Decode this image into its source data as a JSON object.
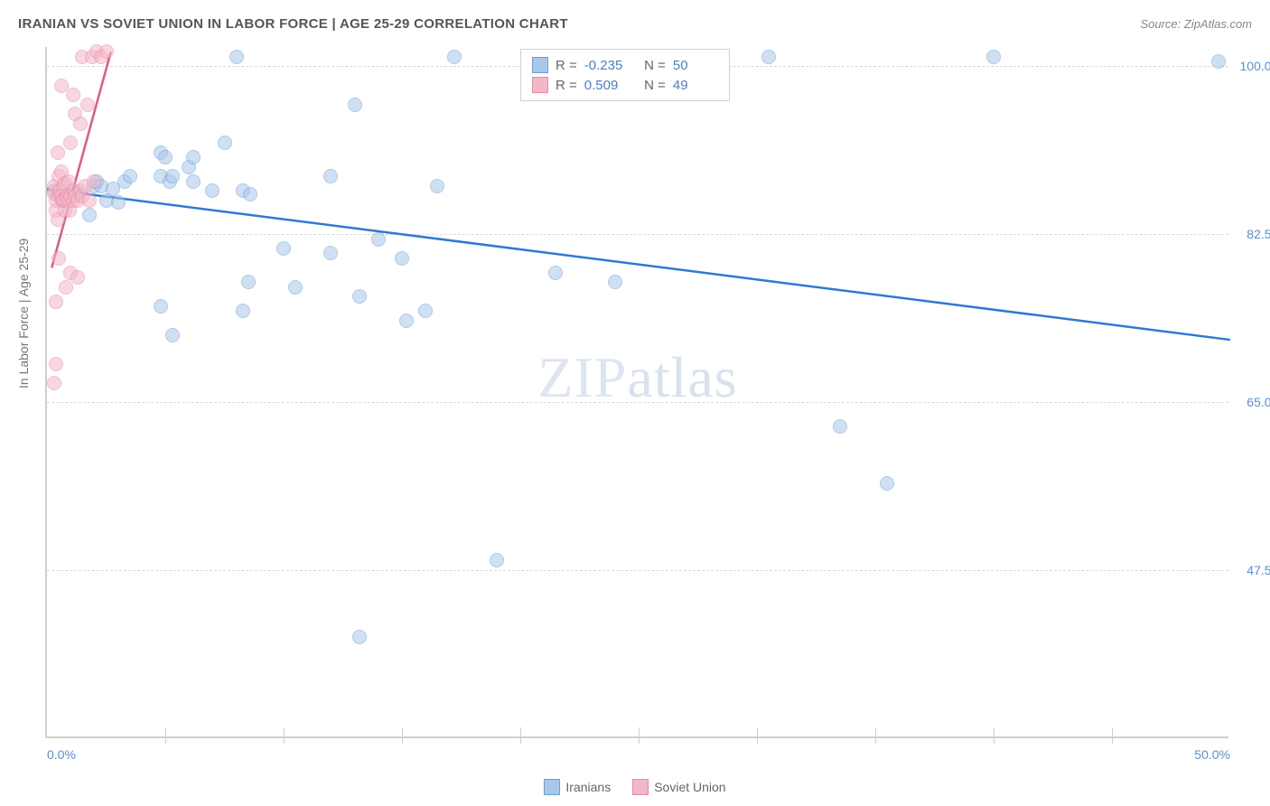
{
  "title": "IRANIAN VS SOVIET UNION IN LABOR FORCE | AGE 25-29 CORRELATION CHART",
  "source": "Source: ZipAtlas.com",
  "y_axis_label": "In Labor Force | Age 25-29",
  "watermark_a": "ZIP",
  "watermark_b": "atlas",
  "chart": {
    "type": "scatter",
    "background_color": "#ffffff",
    "grid_color": "#d8d8d8",
    "axis_color": "#cfcfcf",
    "xlim": [
      0,
      50
    ],
    "ylim": [
      30,
      102
    ],
    "x_ticks": [
      0,
      50
    ],
    "x_tick_labels": [
      "0.0%",
      "50.0%"
    ],
    "x_minor_ticks": [
      5,
      10,
      15,
      20,
      25,
      30,
      35,
      40,
      45
    ],
    "y_ticks": [
      47.5,
      65.0,
      82.5,
      100.0
    ],
    "y_tick_labels": [
      "47.5%",
      "65.0%",
      "82.5%",
      "100.0%"
    ],
    "marker_radius": 8,
    "marker_opacity": 0.55,
    "series": [
      {
        "name": "Iranians",
        "color_fill": "#a9c7eb",
        "color_stroke": "#6f9ed6",
        "trend": {
          "x1": 0,
          "y1": 87.2,
          "x2": 50,
          "y2": 71.5,
          "color": "#2f7ad1",
          "width": 2.5
        },
        "points": [
          [
            0.3,
            87.0
          ],
          [
            1.0,
            87.0
          ],
          [
            1.3,
            86.8
          ],
          [
            1.8,
            84.5
          ],
          [
            2.0,
            87.5
          ],
          [
            2.1,
            88.0
          ],
          [
            2.3,
            87.5
          ],
          [
            2.5,
            86.0
          ],
          [
            2.8,
            87.2
          ],
          [
            3.0,
            85.8
          ],
          [
            3.3,
            88.0
          ],
          [
            3.5,
            88.5
          ],
          [
            4.8,
            88.5
          ],
          [
            4.8,
            75.0
          ],
          [
            4.8,
            91.0
          ],
          [
            5.0,
            90.5
          ],
          [
            5.2,
            88.0
          ],
          [
            5.3,
            88.5
          ],
          [
            5.3,
            72.0
          ],
          [
            6.0,
            89.5
          ],
          [
            6.2,
            90.5
          ],
          [
            6.2,
            88.0
          ],
          [
            7.0,
            87.0
          ],
          [
            7.5,
            92.0
          ],
          [
            8.0,
            101.0
          ],
          [
            8.3,
            87.0
          ],
          [
            8.3,
            74.5
          ],
          [
            8.5,
            77.5
          ],
          [
            8.6,
            86.7
          ],
          [
            10.0,
            81.0
          ],
          [
            10.5,
            77.0
          ],
          [
            12.0,
            80.5
          ],
          [
            12.0,
            88.5
          ],
          [
            13.0,
            96.0
          ],
          [
            13.2,
            76.0
          ],
          [
            13.2,
            40.5
          ],
          [
            14.0,
            82.0
          ],
          [
            15.0,
            80.0
          ],
          [
            15.2,
            73.5
          ],
          [
            16.0,
            74.5
          ],
          [
            16.5,
            87.5
          ],
          [
            17.2,
            101.0
          ],
          [
            19.0,
            48.5
          ],
          [
            21.5,
            78.5
          ],
          [
            24.0,
            77.5
          ],
          [
            30.5,
            101.0
          ],
          [
            33.5,
            62.5
          ],
          [
            35.5,
            56.5
          ],
          [
            40.0,
            101.0
          ],
          [
            49.5,
            100.5
          ]
        ]
      },
      {
        "name": "Soviet Union",
        "color_fill": "#f3b8c8",
        "color_stroke": "#e889a6",
        "trend": {
          "x1": 0.2,
          "y1": 79.0,
          "x2": 2.7,
          "y2": 101.5,
          "color": "#e05a82",
          "width": 2.5
        },
        "points": [
          [
            0.3,
            86.8
          ],
          [
            0.3,
            87.5
          ],
          [
            0.4,
            86.0
          ],
          [
            0.4,
            85.0
          ],
          [
            0.45,
            84.0
          ],
          [
            0.45,
            91.0
          ],
          [
            0.5,
            86.5
          ],
          [
            0.5,
            88.5
          ],
          [
            0.5,
            80.0
          ],
          [
            0.55,
            87.0
          ],
          [
            0.6,
            86.5
          ],
          [
            0.6,
            89.0
          ],
          [
            0.6,
            98.0
          ],
          [
            0.65,
            86.0
          ],
          [
            0.7,
            86.0
          ],
          [
            0.7,
            87.5
          ],
          [
            0.75,
            85.0
          ],
          [
            0.75,
            87.8
          ],
          [
            0.8,
            86.0
          ],
          [
            0.8,
            77.0
          ],
          [
            0.85,
            86.5
          ],
          [
            0.9,
            86.0
          ],
          [
            0.9,
            88.0
          ],
          [
            0.95,
            85.0
          ],
          [
            1.0,
            86.5
          ],
          [
            1.0,
            92.0
          ],
          [
            1.0,
            78.5
          ],
          [
            1.1,
            86.0
          ],
          [
            1.1,
            97.0
          ],
          [
            1.15,
            87.0
          ],
          [
            1.2,
            86.5
          ],
          [
            1.2,
            95.0
          ],
          [
            1.3,
            86.0
          ],
          [
            1.3,
            78.0
          ],
          [
            1.4,
            87.0
          ],
          [
            1.4,
            94.0
          ],
          [
            1.5,
            86.5
          ],
          [
            1.5,
            101.0
          ],
          [
            1.6,
            87.5
          ],
          [
            1.7,
            96.0
          ],
          [
            1.8,
            86.0
          ],
          [
            1.9,
            101.0
          ],
          [
            2.0,
            88.0
          ],
          [
            2.1,
            101.5
          ],
          [
            2.3,
            101.0
          ],
          [
            2.5,
            101.5
          ],
          [
            0.3,
            67.0
          ],
          [
            0.4,
            69.0
          ],
          [
            0.4,
            75.5
          ]
        ]
      }
    ]
  },
  "stats_box": {
    "rows": [
      {
        "swatch_fill": "#a9c7eb",
        "swatch_stroke": "#6f9ed6",
        "r_value": "-0.235",
        "n_value": "50"
      },
      {
        "swatch_fill": "#f3b8c8",
        "swatch_stroke": "#e889a6",
        "r_value": "0.509",
        "n_value": "49"
      }
    ],
    "r_label": "R =",
    "n_label": "N ="
  },
  "bottom_legend": [
    {
      "swatch_fill": "#a9c7eb",
      "swatch_stroke": "#6f9ed6",
      "label": "Iranians"
    },
    {
      "swatch_fill": "#f3b8c8",
      "swatch_stroke": "#e889a6",
      "label": "Soviet Union"
    }
  ]
}
